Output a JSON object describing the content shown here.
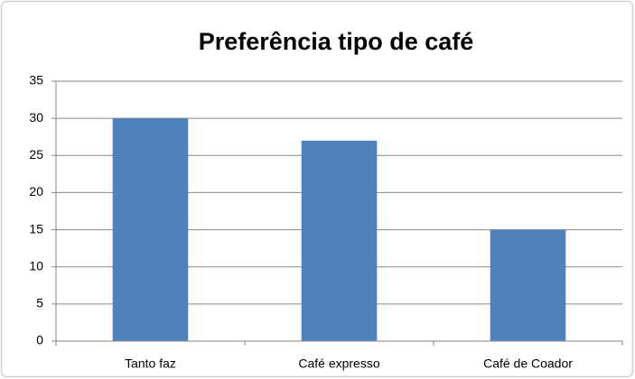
{
  "chart_data": {
    "type": "bar",
    "title": "Preferência tipo de café",
    "categories": [
      "Tanto faz",
      "Café expresso",
      "Café de Coador"
    ],
    "values": [
      30,
      27,
      15
    ],
    "color": "#4f81bd",
    "ylim": [
      0,
      35
    ],
    "yticks": [
      0,
      5,
      10,
      15,
      20,
      25,
      30,
      35
    ],
    "grid": true
  }
}
